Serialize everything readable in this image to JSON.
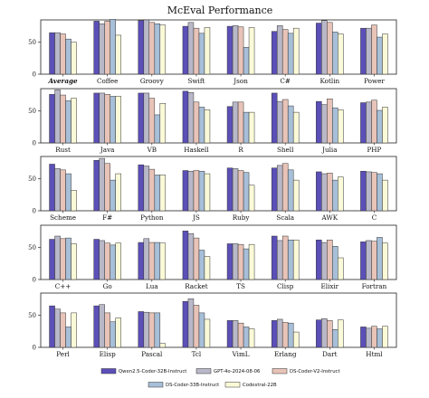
{
  "chart_data": {
    "type": "bar",
    "title": "McEval Performance",
    "ylim": [
      0,
      85
    ],
    "yticks": [
      0,
      50
    ],
    "grid": false,
    "legend_position": "bottom",
    "series_names": [
      "Qwen2.5-Coder-32B-Instruct",
      "GPT-4o-2024-08-06",
      "DS-Coder-V2-Instruct",
      "DS-Coder-33B-Instruct",
      "Codestral-22B"
    ],
    "series_colors": [
      "#5b4fb8",
      "#b8b8c8",
      "#e8c3b8",
      "#a7bfd8",
      "#fbfad8"
    ],
    "panels": [
      {
        "categories": [
          "Average",
          "Coffee",
          "Groovy",
          "Swift",
          "Json",
          "C#",
          "Kotlin",
          "Power"
        ],
        "values": [
          [
            65,
            65,
            63,
            55,
            50
          ],
          [
            83,
            79,
            83,
            86,
            61
          ],
          [
            84,
            85,
            81,
            79,
            77
          ],
          [
            75,
            81,
            72,
            64,
            73
          ],
          [
            75,
            76,
            74,
            42,
            73
          ],
          [
            67,
            76,
            70,
            64,
            72
          ],
          [
            80,
            84,
            81,
            66,
            63
          ],
          [
            72,
            72,
            77,
            58,
            63
          ]
        ]
      },
      {
        "categories": [
          "Rust",
          "Java",
          "VB",
          "Haskell",
          "R",
          "Shell",
          "Julia",
          "PHP"
        ],
        "values": [
          [
            76,
            83,
            75,
            66,
            70
          ],
          [
            78,
            78,
            76,
            73,
            73
          ],
          [
            78,
            78,
            70,
            44,
            62
          ],
          [
            81,
            79,
            64,
            56,
            52
          ],
          [
            57,
            64,
            64,
            48,
            48
          ],
          [
            78,
            65,
            68,
            58,
            48
          ],
          [
            65,
            60,
            69,
            55,
            52
          ],
          [
            63,
            64,
            67,
            51,
            56
          ]
        ]
      },
      {
        "categories": [
          "Scheme",
          "F#",
          "Python",
          "JS",
          "Ruby",
          "Scala",
          "AWK",
          "C"
        ],
        "values": [
          [
            73,
            66,
            64,
            58,
            32
          ],
          [
            79,
            82,
            74,
            48,
            58
          ],
          [
            72,
            70,
            65,
            56,
            56
          ],
          [
            63,
            62,
            63,
            62,
            58
          ],
          [
            67,
            66,
            63,
            60,
            40
          ],
          [
            67,
            71,
            74,
            64,
            48
          ],
          [
            61,
            58,
            59,
            48,
            53
          ],
          [
            62,
            61,
            60,
            58,
            48
          ]
        ]
      },
      {
        "categories": [
          "C++",
          "Go",
          "Lua",
          "Racket",
          "TS",
          "Clisp",
          "Elixir",
          "Fortran"
        ],
        "values": [
          [
            63,
            68,
            64,
            65,
            56
          ],
          [
            63,
            61,
            57,
            54,
            57
          ],
          [
            58,
            64,
            58,
            58,
            57
          ],
          [
            76,
            72,
            65,
            46,
            36
          ],
          [
            56,
            56,
            55,
            48,
            55
          ],
          [
            68,
            61,
            68,
            62,
            62
          ],
          [
            62,
            58,
            62,
            52,
            34
          ],
          [
            59,
            61,
            60,
            66,
            57
          ]
        ]
      },
      {
        "categories": [
          "Perl",
          "Elisp",
          "Pascal",
          "Tcl",
          "VimL",
          "Erlang",
          "Dart",
          "Html"
        ],
        "values": [
          [
            65,
            60,
            54,
            32,
            54
          ],
          [
            65,
            67,
            54,
            40,
            46
          ],
          [
            56,
            55,
            54,
            54,
            6
          ],
          [
            72,
            76,
            66,
            54,
            44
          ],
          [
            42,
            42,
            38,
            32,
            29
          ],
          [
            42,
            44,
            39,
            38,
            24
          ],
          [
            43,
            45,
            42,
            28,
            43
          ],
          [
            32,
            30,
            33,
            29,
            33
          ]
        ]
      }
    ]
  }
}
